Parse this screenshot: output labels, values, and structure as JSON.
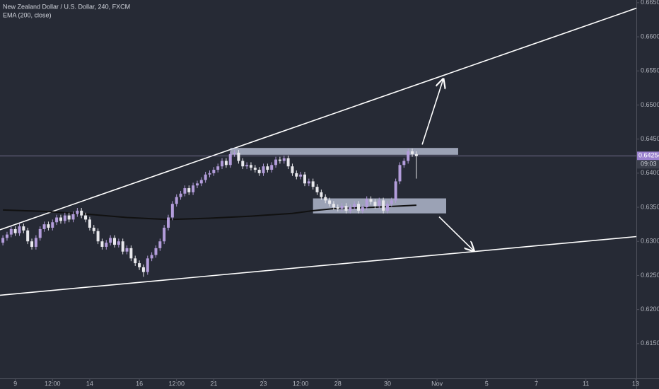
{
  "chart_data": {
    "type": "candlestick",
    "title": "New Zealand Dollar / U.S. Dollar, 240, FXCM",
    "up_color": "#b39ddb",
    "down_color": "#e8e8ec",
    "xlim": [
      -0.7,
      153.2
    ],
    "ylim": [
      0.6099,
      0.6654
    ],
    "yticks": [
      {
        "value": 0.615,
        "label": "0.61500"
      },
      {
        "value": 0.62,
        "label": "0.62000"
      },
      {
        "value": 0.625,
        "label": "0.62500"
      },
      {
        "value": 0.63,
        "label": "0.63000"
      },
      {
        "value": 0.635,
        "label": "0.63500"
      },
      {
        "value": 0.64,
        "label": "0.64000"
      },
      {
        "value": 0.645,
        "label": "0.64500"
      },
      {
        "value": 0.65,
        "label": "0.65000"
      },
      {
        "value": 0.655,
        "label": "0.65500"
      },
      {
        "value": 0.66,
        "label": "0.66000"
      },
      {
        "value": 0.665,
        "label": "0.66500"
      }
    ],
    "xticks": [
      {
        "value": 3,
        "label": "9"
      },
      {
        "value": 12,
        "label": "12:00"
      },
      {
        "value": 21,
        "label": "14"
      },
      {
        "value": 33,
        "label": "16"
      },
      {
        "value": 42,
        "label": "12:00"
      },
      {
        "value": 51,
        "label": "21"
      },
      {
        "value": 63,
        "label": "23"
      },
      {
        "value": 72,
        "label": "12:00"
      },
      {
        "value": 81,
        "label": "28"
      },
      {
        "value": 93,
        "label": "30"
      },
      {
        "value": 105,
        "label": "Nov"
      },
      {
        "value": 117,
        "label": "5"
      },
      {
        "value": 129,
        "label": "7"
      },
      {
        "value": 141,
        "label": "11"
      },
      {
        "value": 153,
        "label": "13"
      }
    ],
    "x": [
      0,
      1,
      2,
      3,
      4,
      5,
      6,
      7,
      8,
      9,
      10,
      11,
      12,
      13,
      14,
      15,
      16,
      17,
      18,
      19,
      20,
      21,
      22,
      23,
      24,
      25,
      26,
      27,
      28,
      29,
      30,
      31,
      32,
      33,
      34,
      35,
      36,
      37,
      38,
      39,
      40,
      41,
      42,
      43,
      44,
      45,
      46,
      47,
      48,
      49,
      50,
      51,
      52,
      53,
      54,
      55,
      56,
      57,
      58,
      59,
      60,
      61,
      62,
      63,
      64,
      65,
      66,
      67,
      68,
      69,
      70,
      71,
      72,
      73,
      74,
      75,
      76,
      77,
      78,
      79,
      80,
      81,
      82,
      83,
      84,
      85,
      86,
      87,
      88,
      89,
      90,
      91,
      92,
      93,
      94,
      95,
      96,
      97,
      98,
      99,
      100
    ],
    "open": [
      0.6298,
      0.6305,
      0.631,
      0.6318,
      0.6312,
      0.6322,
      0.6316,
      0.63,
      0.6292,
      0.6305,
      0.6318,
      0.6325,
      0.632,
      0.6328,
      0.6335,
      0.633,
      0.6338,
      0.6332,
      0.634,
      0.6345,
      0.6338,
      0.6332,
      0.632,
      0.6315,
      0.63,
      0.6292,
      0.6298,
      0.6305,
      0.6295,
      0.63,
      0.6285,
      0.629,
      0.6275,
      0.6268,
      0.6262,
      0.6255,
      0.6275,
      0.628,
      0.629,
      0.63,
      0.632,
      0.6335,
      0.6355,
      0.6365,
      0.637,
      0.6378,
      0.6372,
      0.6382,
      0.6385,
      0.639,
      0.6398,
      0.64,
      0.6405,
      0.641,
      0.6418,
      0.6412,
      0.6428,
      0.643,
      0.6418,
      0.641,
      0.6412,
      0.6408,
      0.6405,
      0.64,
      0.641,
      0.6405,
      0.6412,
      0.642,
      0.6418,
      0.6422,
      0.641,
      0.64,
      0.6395,
      0.6398,
      0.6385,
      0.6388,
      0.638,
      0.6372,
      0.6365,
      0.636,
      0.6355,
      0.635,
      0.6348,
      0.6352,
      0.6345,
      0.635,
      0.6355,
      0.6345,
      0.635,
      0.6362,
      0.6358,
      0.6352,
      0.636,
      0.6345,
      0.6355,
      0.636,
      0.6388,
      0.6412,
      0.6418,
      0.6432,
      0.6428
    ],
    "high": [
      0.6309,
      0.6314,
      0.6322,
      0.6322,
      0.6326,
      0.6326,
      0.632,
      0.6304,
      0.6309,
      0.6322,
      0.6329,
      0.6329,
      0.6332,
      0.6339,
      0.6339,
      0.6342,
      0.6342,
      0.6344,
      0.6349,
      0.6349,
      0.6342,
      0.6336,
      0.6324,
      0.6319,
      0.6304,
      0.6302,
      0.6309,
      0.6309,
      0.6304,
      0.6304,
      0.6294,
      0.6294,
      0.6279,
      0.6272,
      0.6266,
      0.6279,
      0.6284,
      0.6294,
      0.6304,
      0.6324,
      0.6339,
      0.6359,
      0.6369,
      0.6374,
      0.6382,
      0.6382,
      0.6386,
      0.6389,
      0.6394,
      0.6402,
      0.6404,
      0.6409,
      0.6414,
      0.6422,
      0.6422,
      0.6432,
      0.6434,
      0.6434,
      0.6422,
      0.6416,
      0.6416,
      0.6412,
      0.6409,
      0.6414,
      0.6414,
      0.6416,
      0.6424,
      0.6424,
      0.6426,
      0.6426,
      0.6414,
      0.6404,
      0.6402,
      0.6402,
      0.6392,
      0.6392,
      0.6384,
      0.6376,
      0.6369,
      0.6364,
      0.6359,
      0.6354,
      0.6356,
      0.6356,
      0.6354,
      0.6359,
      0.6359,
      0.6354,
      0.6366,
      0.6366,
      0.6362,
      0.6364,
      0.6364,
      0.6359,
      0.6364,
      0.6392,
      0.6416,
      0.6422,
      0.6436,
      0.6436,
      0.6432
    ],
    "low": [
      0.6294,
      0.6301,
      0.6306,
      0.6308,
      0.6308,
      0.6312,
      0.6296,
      0.6288,
      0.6288,
      0.6301,
      0.6314,
      0.6316,
      0.6316,
      0.6324,
      0.6326,
      0.6326,
      0.6328,
      0.6328,
      0.6336,
      0.6334,
      0.6328,
      0.6316,
      0.6311,
      0.6296,
      0.6288,
      0.6288,
      0.6294,
      0.6291,
      0.6291,
      0.6281,
      0.6281,
      0.6271,
      0.6264,
      0.6258,
      0.6248,
      0.6251,
      0.6271,
      0.6276,
      0.6286,
      0.6296,
      0.6316,
      0.6331,
      0.6351,
      0.6361,
      0.6366,
      0.6368,
      0.6368,
      0.6378,
      0.6381,
      0.6386,
      0.6394,
      0.6396,
      0.6401,
      0.6406,
      0.6408,
      0.6408,
      0.6424,
      0.6414,
      0.6406,
      0.6406,
      0.6404,
      0.6401,
      0.6396,
      0.6396,
      0.6401,
      0.6401,
      0.6408,
      0.6414,
      0.6414,
      0.6406,
      0.6396,
      0.6391,
      0.6391,
      0.6381,
      0.6381,
      0.6376,
      0.6368,
      0.6361,
      0.6356,
      0.6351,
      0.6346,
      0.6344,
      0.6344,
      0.6341,
      0.6341,
      0.6346,
      0.6341,
      0.6341,
      0.6346,
      0.6354,
      0.6348,
      0.6348,
      0.6341,
      0.6341,
      0.6351,
      0.6356,
      0.6384,
      0.6408,
      0.6414,
      0.6424,
      0.6392
    ],
    "close": [
      0.6305,
      0.631,
      0.6318,
      0.6312,
      0.6322,
      0.6316,
      0.63,
      0.6292,
      0.6305,
      0.6318,
      0.6325,
      0.632,
      0.6328,
      0.6335,
      0.633,
      0.6338,
      0.6332,
      0.634,
      0.6345,
      0.6338,
      0.6332,
      0.632,
      0.6315,
      0.63,
      0.6292,
      0.6298,
      0.6305,
      0.6295,
      0.63,
      0.6285,
      0.629,
      0.6275,
      0.6268,
      0.6262,
      0.6255,
      0.6275,
      0.628,
      0.629,
      0.63,
      0.632,
      0.6335,
      0.6355,
      0.6365,
      0.637,
      0.6378,
      0.6372,
      0.6382,
      0.6385,
      0.639,
      0.6398,
      0.64,
      0.6405,
      0.641,
      0.6418,
      0.6412,
      0.6428,
      0.643,
      0.6418,
      0.641,
      0.6412,
      0.6408,
      0.6405,
      0.64,
      0.641,
      0.6405,
      0.6412,
      0.642,
      0.6418,
      0.6422,
      0.641,
      0.64,
      0.6395,
      0.6398,
      0.6385,
      0.6388,
      0.638,
      0.6372,
      0.6365,
      0.636,
      0.6355,
      0.635,
      0.6348,
      0.6352,
      0.6345,
      0.635,
      0.6355,
      0.6345,
      0.635,
      0.6362,
      0.6358,
      0.6352,
      0.636,
      0.6345,
      0.6355,
      0.636,
      0.6388,
      0.6412,
      0.6418,
      0.6432,
      0.6428,
      0.6425
    ],
    "ema": {
      "name": "EMA (200, close)",
      "color": "#111111",
      "x": [
        0,
        10,
        20,
        30,
        40,
        50,
        60,
        70,
        75,
        80,
        90,
        100
      ],
      "values": [
        0.6346,
        0.6344,
        0.634,
        0.6335,
        0.6332,
        0.6334,
        0.6337,
        0.6341,
        0.6345,
        0.6348,
        0.635,
        0.6353
      ]
    },
    "trendlines": [
      {
        "color": "#ffffff",
        "x": [
          -0.7,
          153.2
        ],
        "values": [
          0.6317,
          0.6642
        ]
      },
      {
        "color": "#ffffff",
        "x": [
          -0.7,
          153.2
        ],
        "values": [
          0.6221,
          0.6307
        ]
      }
    ],
    "zones": [
      {
        "color": "#c3cbe0",
        "x": [
          55.0,
          110.1
        ],
        "values": [
          0.6437,
          0.6427
        ]
      },
      {
        "color": "#c3cbe0",
        "x": [
          75.0,
          107.2
        ],
        "values": [
          0.6363,
          0.6341
        ]
      }
    ],
    "arrows": [
      {
        "color": "#ffffff",
        "x": [
          101.4,
          106.5
        ],
        "values": [
          0.6442,
          0.6538
        ]
      },
      {
        "color": "#ffffff",
        "x": [
          105.5,
          113.9
        ],
        "values": [
          0.6336,
          0.6286
        ]
      }
    ],
    "last_price": 0.64254,
    "countdown": "09:03"
  }
}
